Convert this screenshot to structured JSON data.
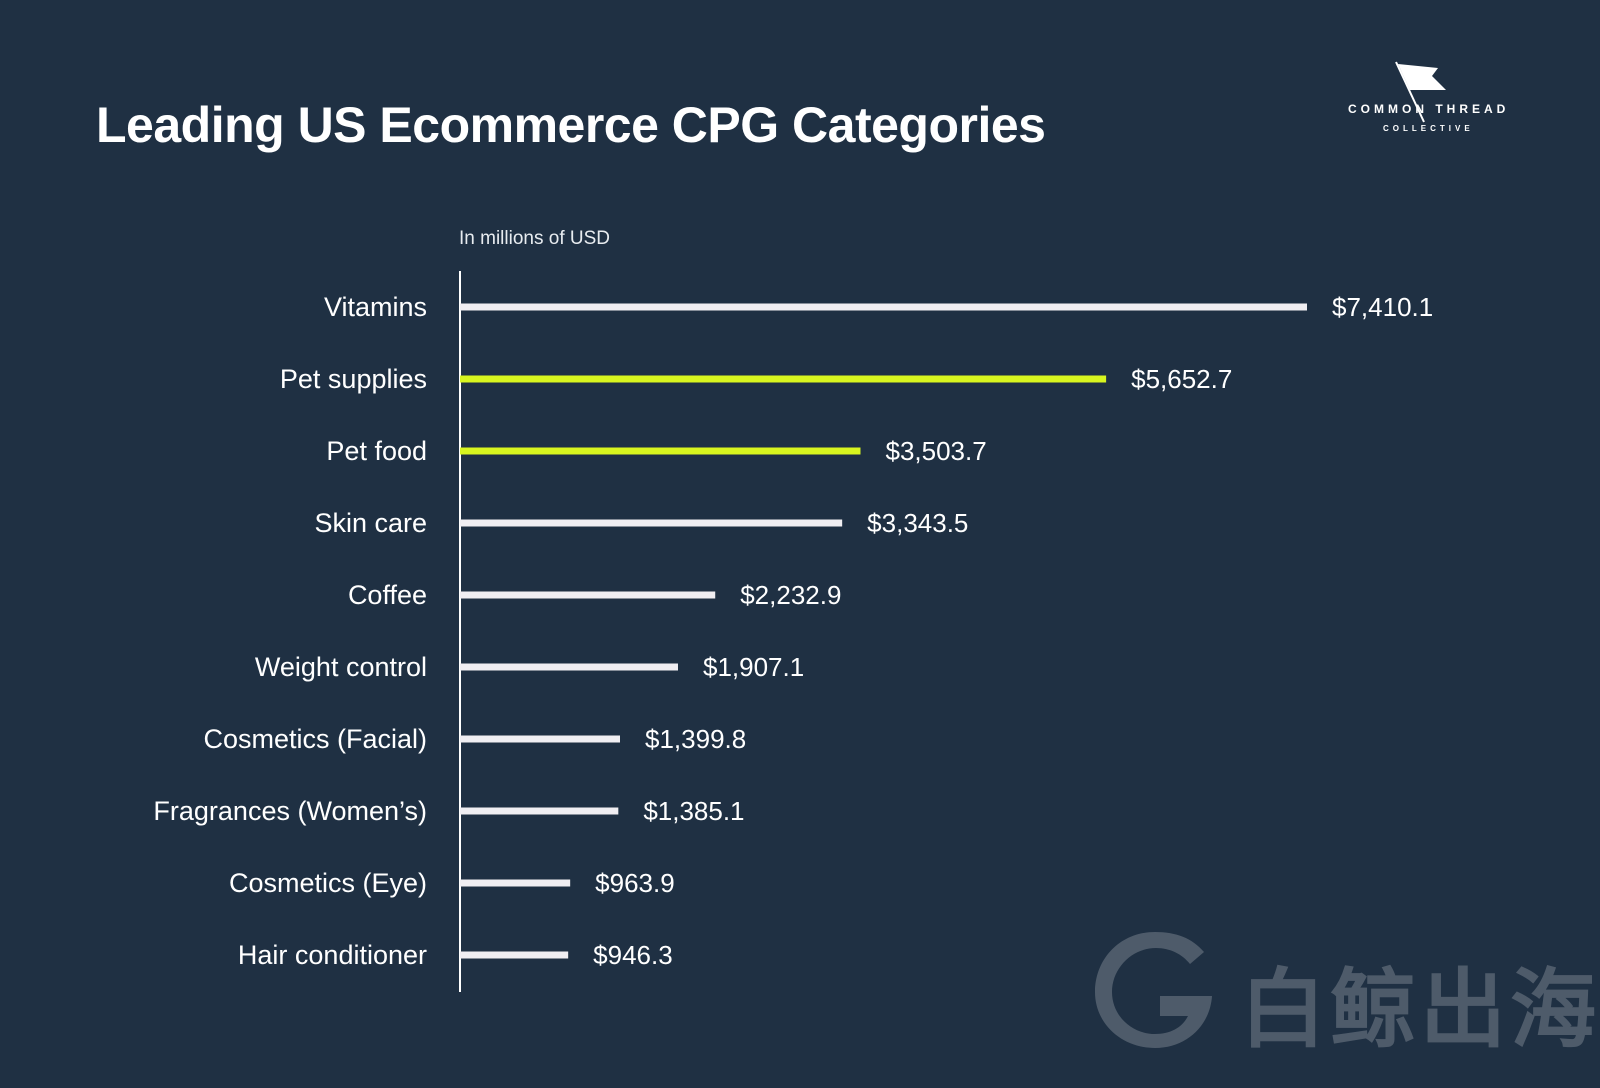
{
  "title": "Leading US Ecommerce CPG Categories",
  "logo": {
    "line1": "COMMON THREAD",
    "line2": "COLLECTIVE"
  },
  "watermark": {
    "text": "白鲸出海"
  },
  "colors": {
    "background": "#1f3043",
    "bar_default": "#f0eef2",
    "bar_highlight": "#d8f51f",
    "axis": "#ffffff",
    "text": "#ffffff"
  },
  "chart_data": {
    "type": "bar",
    "orientation": "horizontal",
    "subtitle": "In millions of USD",
    "categories": [
      "Vitamins",
      "Pet supplies",
      "Pet food",
      "Skin care",
      "Coffee",
      "Weight control",
      "Cosmetics (Facial)",
      "Fragrances (Women’s)",
      "Cosmetics (Eye)",
      "Hair conditioner"
    ],
    "values": [
      7410.1,
      5652.7,
      3503.7,
      3343.5,
      2232.9,
      1907.1,
      1399.8,
      1385.1,
      963.9,
      946.3
    ],
    "value_labels": [
      "$7,410.1",
      "$5,652.7",
      "$3,503.7",
      "$3,343.5",
      "$2,232.9",
      "$1,907.1",
      "$1,399.8",
      "$1,385.1",
      "$963.9",
      "$946.3"
    ],
    "highlighted": [
      "Pet supplies",
      "Pet food"
    ],
    "xlim": [
      0,
      7410.1
    ],
    "grid": false,
    "legend": "none"
  }
}
